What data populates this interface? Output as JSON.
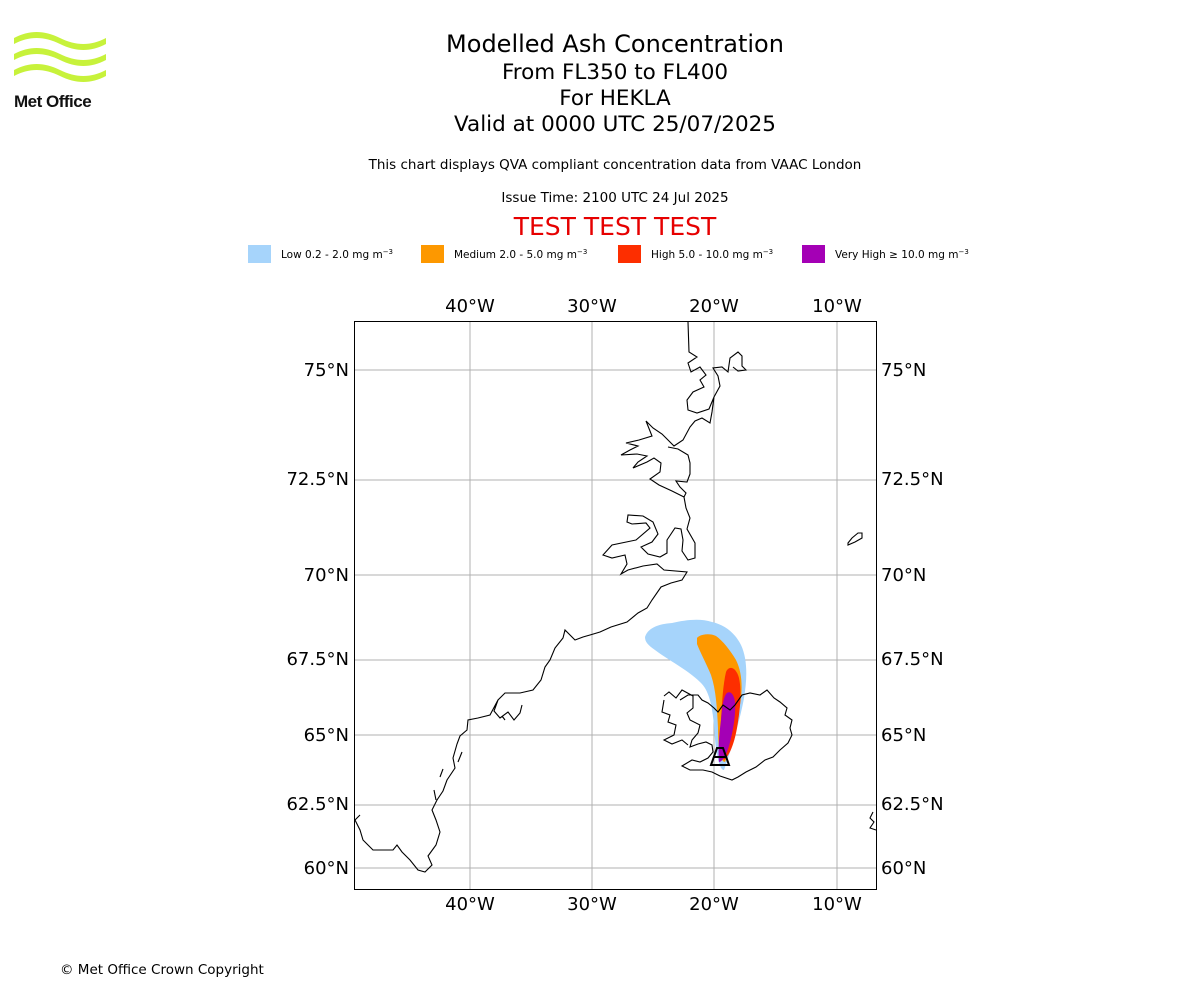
{
  "header": {
    "logo_text": "Met Office",
    "title": "Modelled Ash Concentration",
    "levels": "From FL350 to FL400",
    "volcano_line": "For HEKLA",
    "valid_line": "Valid at 0000 UTC 25/07/2025",
    "description": "This chart displays QVA compliant concentration data from VAAC London",
    "issue_time": "Issue Time: 2100 UTC 24 Jul 2025",
    "test_banner": "TEST TEST TEST"
  },
  "legend": [
    {
      "label": "Low 0.2 - 2.0 mg m",
      "exp": "−3",
      "color": "#a6d4fb"
    },
    {
      "label": "Medium 2.0 - 5.0 mg m",
      "exp": "−3",
      "color": "#fd9800"
    },
    {
      "label": "High 5.0 - 10.0 mg m",
      "exp": "−3",
      "color": "#fd2e00"
    },
    {
      "label": "Very High  ≥  10.0 mg m",
      "exp": "−3",
      "color": "#a400b5"
    }
  ],
  "map": {
    "lon_labels": [
      "40°W",
      "30°W",
      "20°W",
      "10°W"
    ],
    "lat_labels": [
      "75°N",
      "72.5°N",
      "70°N",
      "67.5°N",
      "65°N",
      "62.5°N",
      "60°N"
    ],
    "volcano_name": "HEKLA"
  },
  "footer": {
    "copyright": "© Met Office Crown Copyright"
  }
}
